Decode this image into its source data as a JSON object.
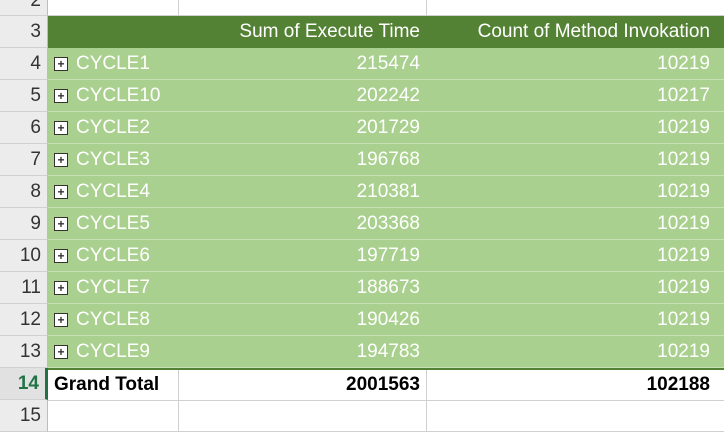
{
  "row_numbers": [
    "2",
    "3",
    "4",
    "5",
    "6",
    "7",
    "8",
    "9",
    "10",
    "11",
    "12",
    "13",
    "14",
    "15"
  ],
  "header": {
    "col_a": "",
    "col_b": "Sum of Execute Time",
    "col_c": "Count of Method Invokation"
  },
  "rows": [
    {
      "label": "CYCLE1",
      "execute_time": "215474",
      "invocations": "10219"
    },
    {
      "label": "CYCLE10",
      "execute_time": "202242",
      "invocations": "10217"
    },
    {
      "label": "CYCLE2",
      "execute_time": "201729",
      "invocations": "10219"
    },
    {
      "label": "CYCLE3",
      "execute_time": "196768",
      "invocations": "10219"
    },
    {
      "label": "CYCLE4",
      "execute_time": "210381",
      "invocations": "10219"
    },
    {
      "label": "CYCLE5",
      "execute_time": "203368",
      "invocations": "10219"
    },
    {
      "label": "CYCLE6",
      "execute_time": "197719",
      "invocations": "10219"
    },
    {
      "label": "CYCLE7",
      "execute_time": "188673",
      "invocations": "10219"
    },
    {
      "label": "CYCLE8",
      "execute_time": "190426",
      "invocations": "10219"
    },
    {
      "label": "CYCLE9",
      "execute_time": "194783",
      "invocations": "10219"
    }
  ],
  "grand_total": {
    "label": "Grand Total",
    "execute_time": "2001563",
    "invocations": "102188"
  },
  "expand_icon": "+",
  "selected_row": "14",
  "colors": {
    "header_bg": "#548235",
    "data_bg": "#a9d08e",
    "accent": "#217346"
  }
}
